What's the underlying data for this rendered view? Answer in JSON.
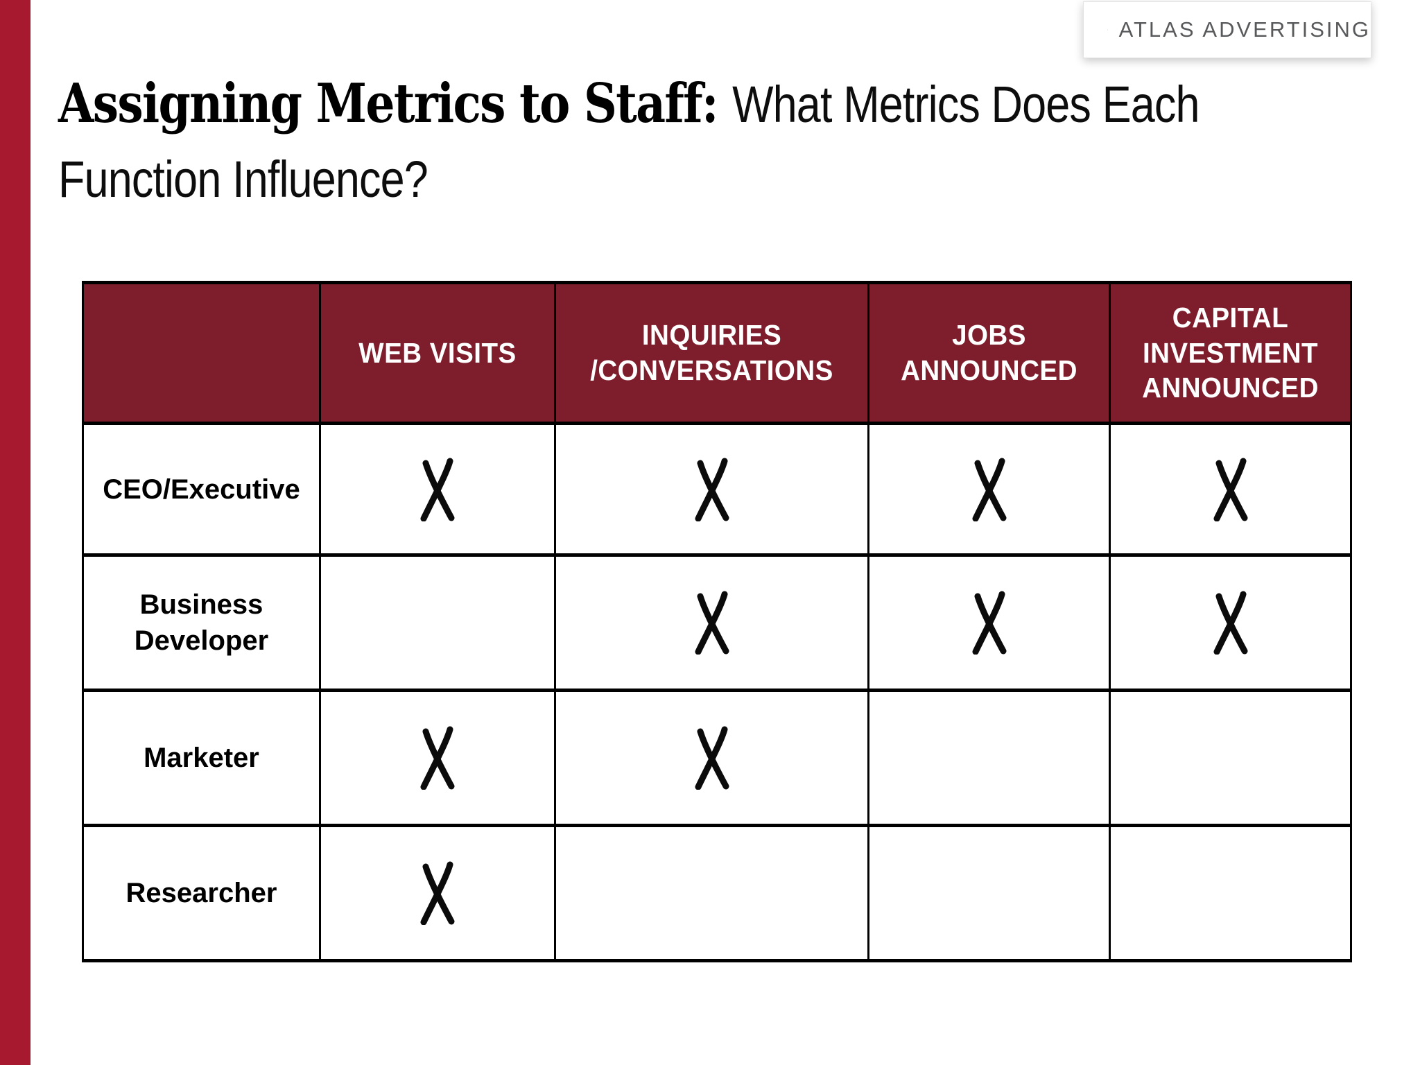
{
  "brand": {
    "logo_text": "ATLAS ADVERTISING",
    "logo_icon": "atlas-a-icon"
  },
  "title": {
    "bold_part": "Assigning Metrics to Staff: ",
    "light_part": "What Metrics Does Each Function Influence?"
  },
  "table": {
    "marks_icon": "x-mark",
    "columns": [
      "",
      "WEB VISITS",
      "INQUIRIES\n/CONVERSATIONS",
      "JOBS\nANNOUNCED",
      "CAPITAL\nINVESTMENT\nANNOUNCED"
    ],
    "rows": [
      {
        "label": "CEO/Executive",
        "marks": [
          true,
          true,
          true,
          true
        ]
      },
      {
        "label": "Business\nDeveloper",
        "marks": [
          false,
          true,
          true,
          true
        ]
      },
      {
        "label": "Marketer",
        "marks": [
          true,
          true,
          false,
          false
        ]
      },
      {
        "label": "Researcher",
        "marks": [
          true,
          false,
          false,
          false
        ]
      }
    ]
  },
  "colors": {
    "accent_bar": "#a6192e",
    "header_bg": "#7e1d2c",
    "logo_red": "#cc2127",
    "logo_text": "#58595b",
    "mark_color": "#0b0b0b"
  }
}
